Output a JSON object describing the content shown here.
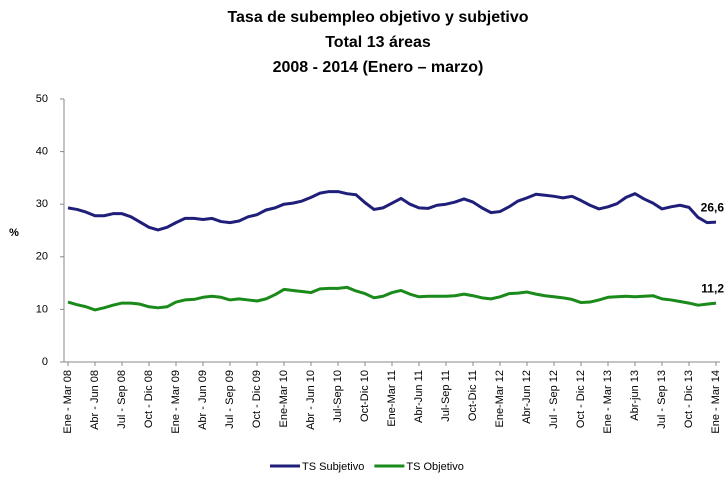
{
  "chart_data": {
    "type": "line",
    "title": [
      "Tasa de subempleo objetivo y subjetivo",
      "Total 13 áreas",
      "2008 - 2014 (Enero – marzo)"
    ],
    "y_label": "%",
    "categories": [
      "Ene - Mar 08",
      null,
      null,
      "Abr - Jun 08",
      null,
      null,
      "Jul - Sep 08",
      null,
      null,
      "Oct - Dic 08",
      null,
      null,
      "Ene - Mar 09",
      null,
      null,
      "Abr - Jun 09",
      null,
      null,
      "Jul - Sep 09",
      null,
      null,
      "Oct - Dic 09",
      null,
      null,
      "Ene-Mar 10",
      null,
      null,
      "Abr - Jun 10",
      null,
      null,
      "Jul-Sep 10",
      null,
      null,
      "Oct-Dic 10",
      null,
      null,
      "Ene-Mar 11",
      null,
      null,
      "Abr-Jun 11",
      null,
      null,
      "Jul-Sep 11",
      null,
      null,
      "Oct-Dic 11",
      null,
      null,
      "Ene-Mar 12",
      null,
      null,
      "Abr-Jun 12",
      null,
      null,
      "Jul - Sep 12",
      null,
      null,
      "Oct - Dic 12",
      null,
      null,
      "Ene - Mar 13",
      null,
      null,
      "Abr-jun 13",
      null,
      null,
      "Jul - Sep 13",
      null,
      null,
      "Oct - Dic 13",
      null,
      null,
      "Ene - Mar 14"
    ],
    "series": [
      {
        "name": "TS Subjetivo",
        "color": "#1f1f7a",
        "values": [
          29.3,
          29.0,
          28.5,
          27.8,
          27.8,
          28.2,
          28.2,
          27.6,
          26.6,
          25.6,
          25.1,
          25.6,
          26.5,
          27.3,
          27.3,
          27.1,
          27.3,
          26.7,
          26.5,
          26.8,
          27.6,
          28.0,
          28.9,
          29.3,
          30.0,
          30.2,
          30.6,
          31.3,
          32.1,
          32.4,
          32.4,
          32.0,
          31.8,
          30.3,
          29.0,
          29.3,
          30.2,
          31.1,
          30.0,
          29.3,
          29.2,
          29.8,
          30.0,
          30.4,
          31.0,
          30.4,
          29.3,
          28.4,
          28.6,
          29.5,
          30.6,
          31.2,
          31.9,
          31.7,
          31.5,
          31.2,
          31.5,
          30.7,
          29.8,
          29.1,
          29.5,
          30.1,
          31.3,
          32.0,
          31.0,
          30.2,
          29.1,
          29.5,
          29.8,
          29.4,
          27.5,
          26.5,
          26.6
        ],
        "value_labels": [
          null,
          null,
          null,
          null,
          null,
          null,
          null,
          null,
          null,
          null,
          null,
          null,
          null,
          null,
          null,
          null,
          null,
          null,
          null,
          null,
          null,
          null,
          null,
          null,
          null,
          null,
          null,
          null,
          null,
          null,
          null,
          null,
          null,
          null,
          null,
          null,
          null,
          null,
          null,
          null,
          null,
          null,
          null,
          null,
          null,
          null,
          null,
          null,
          null,
          null,
          null,
          null,
          null,
          null,
          null,
          null,
          null,
          null,
          null,
          null,
          null,
          null,
          null,
          null,
          null,
          null,
          null,
          null,
          null,
          null,
          null,
          null,
          "26,6"
        ]
      },
      {
        "name": "TS Objetivo",
        "color": "#1a8a1a",
        "values": [
          11.4,
          10.9,
          10.5,
          9.9,
          10.3,
          10.8,
          11.2,
          11.2,
          11.0,
          10.5,
          10.3,
          10.5,
          11.4,
          11.8,
          11.9,
          12.3,
          12.5,
          12.3,
          11.8,
          12.0,
          11.8,
          11.6,
          12.0,
          12.8,
          13.8,
          13.6,
          13.4,
          13.2,
          13.9,
          14.0,
          14.0,
          14.2,
          13.5,
          13.0,
          12.2,
          12.5,
          13.2,
          13.6,
          12.9,
          12.4,
          12.5,
          12.5,
          12.5,
          12.6,
          12.9,
          12.6,
          12.2,
          12.0,
          12.4,
          13.0,
          13.1,
          13.3,
          12.9,
          12.6,
          12.4,
          12.2,
          11.9,
          11.3,
          11.4,
          11.8,
          12.3,
          12.4,
          12.5,
          12.4,
          12.5,
          12.6,
          12.0,
          11.8,
          11.5,
          11.2,
          10.8,
          11.0,
          11.2
        ],
        "value_labels": [
          null,
          null,
          null,
          null,
          null,
          null,
          null,
          null,
          null,
          null,
          null,
          null,
          null,
          null,
          null,
          null,
          null,
          null,
          null,
          null,
          null,
          null,
          null,
          null,
          null,
          null,
          null,
          null,
          null,
          null,
          null,
          null,
          null,
          null,
          null,
          null,
          null,
          null,
          null,
          null,
          null,
          null,
          null,
          null,
          null,
          null,
          null,
          null,
          null,
          null,
          null,
          null,
          null,
          null,
          null,
          null,
          null,
          null,
          null,
          null,
          null,
          null,
          null,
          null,
          null,
          null,
          null,
          null,
          null,
          null,
          null,
          null,
          "11,2"
        ]
      }
    ],
    "ylim": [
      0,
      50
    ],
    "yticks": [
      0,
      10,
      20,
      30,
      40,
      50
    ],
    "grid": false,
    "legend": "bottom"
  }
}
